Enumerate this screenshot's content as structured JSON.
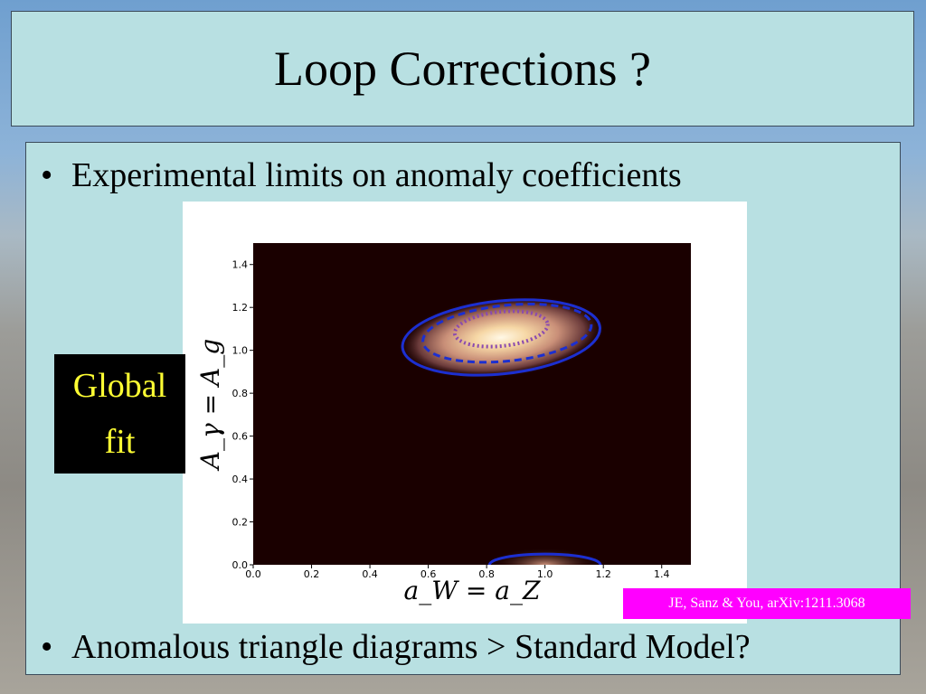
{
  "slide": {
    "title": "Loop Corrections ?",
    "bullets": [
      "Experimental limits on anomaly coefficients",
      "Anomalous triangle diagrams > Standard Model?"
    ],
    "bullet_glyph": "•",
    "global_fit": [
      "Global",
      "fit"
    ],
    "citation": "JE, Sanz & You, arXiv:1211.3068"
  },
  "chart_data": {
    "type": "heatmap",
    "xlabel": "a_W = a_Z",
    "ylabel": "A_γ = A_g",
    "xlim": [
      0.0,
      1.5
    ],
    "ylim": [
      0.0,
      1.5
    ],
    "xticks": [
      "0.0",
      "0.2",
      "0.4",
      "0.6",
      "0.8",
      "1.0",
      "1.2",
      "1.4"
    ],
    "yticks": [
      "0.0",
      "0.2",
      "0.4",
      "0.6",
      "0.8",
      "1.0",
      "1.2",
      "1.4"
    ],
    "background_color": "#1a0000",
    "best_fit": {
      "x": 0.85,
      "y": 1.1
    },
    "regions": [
      {
        "center": [
          0.85,
          1.06
        ],
        "semi_axes": [
          0.34,
          0.17
        ],
        "style": "solid",
        "color": "#1c2fd0"
      },
      {
        "center": [
          0.87,
          1.08
        ],
        "semi_axes": [
          0.29,
          0.13
        ],
        "style": "dashed",
        "color": "#1c2fd0"
      },
      {
        "center": [
          0.85,
          1.1
        ],
        "semi_axes": [
          0.16,
          0.08
        ],
        "style": "dotted",
        "color": "#8a4ab0"
      }
    ],
    "secondary_region": {
      "center": [
        1.0,
        0.0
      ],
      "semi_axes": [
        0.19,
        0.05
      ],
      "style": "solid",
      "color": "#1c2fd0"
    },
    "grid": false
  }
}
